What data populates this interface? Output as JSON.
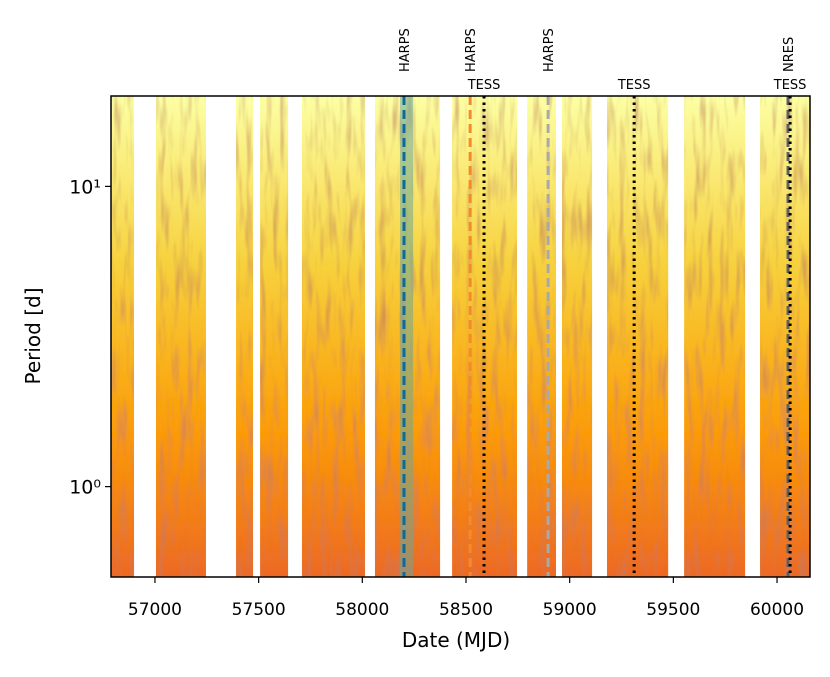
{
  "chart_data": {
    "type": "heatmap",
    "xlabel": "Date (MJD)",
    "ylabel": "Period [d]",
    "xlim": [
      56788,
      60159
    ],
    "ylim": [
      0.5,
      20
    ],
    "ylog": true,
    "xticks": [
      57000,
      57500,
      58000,
      58500,
      59000,
      59500,
      60000
    ],
    "yticks": [
      {
        "value": 1,
        "label": "10⁰"
      },
      {
        "value": 10,
        "label": "10¹"
      }
    ],
    "colormap": [
      "#fcffa4",
      "#f7d13d",
      "#fb9b06",
      "#ed6925",
      "#57106e"
    ],
    "seasons": [
      [
        56788,
        56899
      ],
      [
        57005,
        57246
      ],
      [
        57391,
        57473
      ],
      [
        57507,
        57642
      ],
      [
        57709,
        58013
      ],
      [
        58061,
        58375
      ],
      [
        58433,
        58746
      ],
      [
        58795,
        58934
      ],
      [
        58963,
        59108
      ],
      [
        59180,
        59475
      ],
      [
        59552,
        59846
      ],
      [
        59918,
        60159
      ]
    ],
    "shaded": {
      "x": [
        58182,
        58245
      ],
      "color": "#6aa89a"
    },
    "markers": [
      {
        "label": "HARPS",
        "x": 58201,
        "color": "#0e6a99",
        "style": "dashed",
        "position": "rotated"
      },
      {
        "label": "HARPS",
        "x": 58520,
        "color": "#f58a2b",
        "style": "dashed",
        "position": "rotated"
      },
      {
        "label": "HARPS",
        "x": 58896,
        "color": "#a9a9a9",
        "style": "dashed",
        "position": "rotated"
      },
      {
        "label": "NRES",
        "x": 60053,
        "color": "#606060",
        "style": "dashed",
        "position": "rotated"
      },
      {
        "label": "TESS",
        "x": 58587,
        "color": "#000000",
        "style": "dotted",
        "position": "horizontal"
      },
      {
        "label": "TESS",
        "x": 59311,
        "color": "#000000",
        "style": "dotted",
        "position": "horizontal"
      },
      {
        "label": "TESS",
        "x": 60063,
        "color": "#000000",
        "style": "dotted",
        "position": "horizontal"
      }
    ]
  }
}
